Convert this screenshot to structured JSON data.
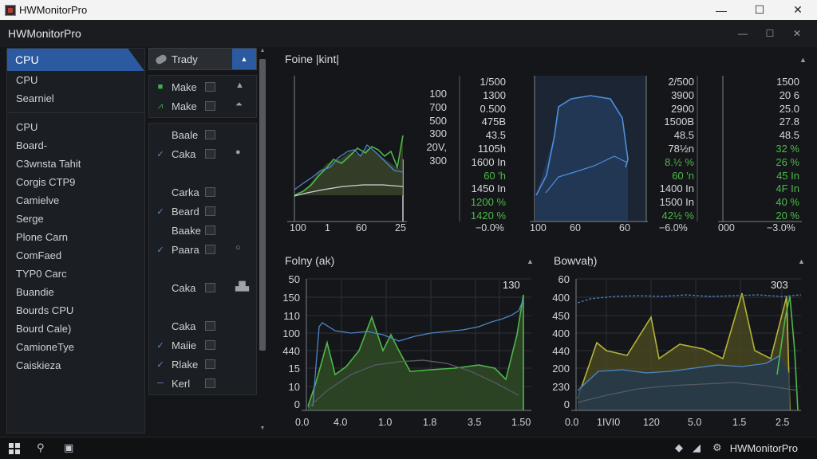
{
  "window": {
    "title": "HWMonitorPro",
    "minimize": "—",
    "maximize": "☐",
    "close": "✕"
  },
  "app_header": {
    "title": "HWMonitorPro",
    "minimize": "—",
    "restore": "☐",
    "close": "✕"
  },
  "left_panel": {
    "selected": "CPU",
    "group1": [
      "CPU",
      "Searniel"
    ],
    "group2": [
      "CPU",
      "Board-",
      "C3wnsta Tahit",
      "Corgis CTP9",
      "Camielve",
      "Serge",
      "Plone Carn",
      "ComFaed",
      "TYP0 Carc",
      "Buandie",
      "Bourds CPU",
      "Bourd Cale)",
      "CamioneTye",
      "Caiskieza"
    ]
  },
  "mid_panel": {
    "header": "Trady",
    "group1": [
      {
        "mark": "■",
        "tone": "green",
        "label": "Make",
        "right": "▲"
      },
      {
        "mark": "⩘",
        "tone": "green",
        "label": "Make",
        "right": "⏶"
      }
    ],
    "group2": [
      {
        "mark": "",
        "tone": "",
        "label": "Baale",
        "right": ""
      },
      {
        "mark": "✓",
        "tone": "blue",
        "label": "Caka",
        "right": "●"
      },
      {
        "mark": "",
        "tone": "",
        "label": "",
        "right": ""
      },
      {
        "mark": "",
        "tone": "",
        "label": "Carka",
        "right": ""
      },
      {
        "mark": "✓",
        "tone": "blue",
        "label": "Beard",
        "right": ""
      },
      {
        "mark": "",
        "tone": "",
        "label": "Baake",
        "right": ""
      },
      {
        "mark": "✓",
        "tone": "blue",
        "label": "Paara",
        "right": "○"
      },
      {
        "mark": "",
        "tone": "",
        "label": "",
        "right": ""
      },
      {
        "mark": "",
        "tone": "",
        "label": "Caka",
        "right": "▟▙"
      },
      {
        "mark": "",
        "tone": "",
        "label": "",
        "right": ""
      },
      {
        "mark": "",
        "tone": "",
        "label": "Caka",
        "right": ""
      },
      {
        "mark": "✓",
        "tone": "blue",
        "label": "Maiie",
        "right": ""
      },
      {
        "mark": "✓",
        "tone": "blue",
        "label": "Rlake",
        "right": ""
      },
      {
        "mark": "─",
        "tone": "blue",
        "label": "Kerl",
        "right": ""
      }
    ]
  },
  "top_section": {
    "title": "Foine |kint|",
    "chart1": {
      "col_labels": [
        "100",
        "700",
        "500",
        "300",
        "20V,",
        "300"
      ],
      "col_values": [
        {
          "t": "1/500",
          "c": "w"
        },
        {
          "t": "1300",
          "c": "w"
        },
        {
          "t": "0.500",
          "c": "w"
        },
        {
          "t": "475B",
          "c": "w"
        },
        {
          "t": "43.5",
          "c": "w"
        },
        {
          "t": "1105h",
          "c": "w"
        },
        {
          "t": "1600 In",
          "c": "w"
        },
        {
          "t": "60 'h",
          "c": "g"
        },
        {
          "t": "1450 In",
          "c": "w"
        },
        {
          "t": "1200 %",
          "c": "g"
        },
        {
          "t": "1420 %",
          "c": "g"
        }
      ],
      "x_ticks": [
        "100",
        "1",
        "60",
        "25"
      ],
      "footer": "−0.0%"
    },
    "chart2": {
      "col_values": [
        {
          "t": "2/500",
          "c": "w"
        },
        {
          "t": "3900",
          "c": "w"
        },
        {
          "t": "2900",
          "c": "w"
        },
        {
          "t": "1500B",
          "c": "w"
        },
        {
          "t": "48.5",
          "c": "w"
        },
        {
          "t": "78½n",
          "c": "w"
        },
        {
          "t": "8.½ %",
          "c": "g"
        },
        {
          "t": "60 'n",
          "c": "g"
        },
        {
          "t": "1400 In",
          "c": "w"
        },
        {
          "t": "1500 In",
          "c": "w"
        },
        {
          "t": "42½ %",
          "c": "g"
        }
      ],
      "x_ticks": [
        "100",
        "60",
        "60"
      ],
      "footer": "−6.0%"
    },
    "chart3": {
      "col_values": [
        {
          "t": "1500",
          "c": "w"
        },
        {
          "t": "20 6",
          "c": "w"
        },
        {
          "t": "25.0",
          "c": "w"
        },
        {
          "t": "27.8",
          "c": "w"
        },
        {
          "t": "48.5",
          "c": "w"
        },
        {
          "t": "32 %",
          "c": "g"
        },
        {
          "t": "26 %",
          "c": "g"
        },
        {
          "t": "45 In",
          "c": "g"
        },
        {
          "t": "4F In",
          "c": "g"
        },
        {
          "t": "40 %",
          "c": "g"
        },
        {
          "t": "20 %",
          "c": "g"
        }
      ],
      "x_ticks": [
        "000"
      ],
      "footer": "−3.0%"
    }
  },
  "bottom_left": {
    "title": "Folny (ak)",
    "corner_value": "130",
    "y_ticks": [
      "50",
      "150",
      "110",
      "100",
      "440",
      "15",
      "10",
      "0"
    ],
    "x_ticks": [
      "0.0",
      "4.0",
      "1.0",
      "1.8",
      "3.5",
      "1.50"
    ]
  },
  "bottom_right": {
    "title": "Bowvah̤)",
    "corner_value": "303",
    "y_ticks": [
      "60",
      "400",
      "450",
      "400",
      "440",
      "200",
      "230",
      "0"
    ],
    "x_ticks": [
      "0.0",
      "1IVI0",
      "120",
      "5.0",
      "1.5",
      "2.5"
    ]
  },
  "taskbar": {
    "tray_label": "HWMonitorPro"
  }
}
